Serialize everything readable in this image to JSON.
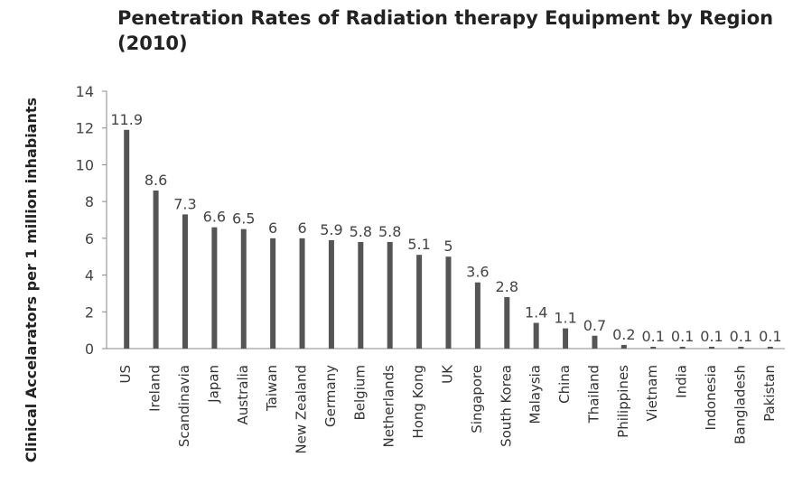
{
  "chart_data": {
    "type": "bar",
    "title": "Penetration Rates of Radiation therapy Equipment by Region (2010)",
    "y_label": "Clinical Accelarators per 1 million inhabiants",
    "categories": [
      "US",
      "Ireland",
      "Scandinavia",
      "Japan",
      "Australia",
      "Taiwan",
      "New Zealand",
      "Germany",
      "Belgium",
      "Netherlands",
      "Hong Kong",
      "UK",
      "Singapore",
      "South Korea",
      "Malaysia",
      "China",
      "Thailand",
      "Philippines",
      "Vietnam",
      "India",
      "Indonesia",
      "Bangladesh",
      "Pakistan"
    ],
    "values": [
      11.9,
      8.6,
      7.3,
      6.6,
      6.5,
      6,
      6,
      5.9,
      5.8,
      5.8,
      5.1,
      5,
      3.6,
      2.8,
      1.4,
      1.1,
      0.7,
      0.2,
      0.1,
      0.1,
      0.1,
      0.1,
      0.1
    ],
    "color": "#555555",
    "ylim": [
      0,
      14
    ],
    "yticks": [
      0,
      2,
      4,
      6,
      8,
      10,
      12,
      14
    ],
    "grid": false
  }
}
